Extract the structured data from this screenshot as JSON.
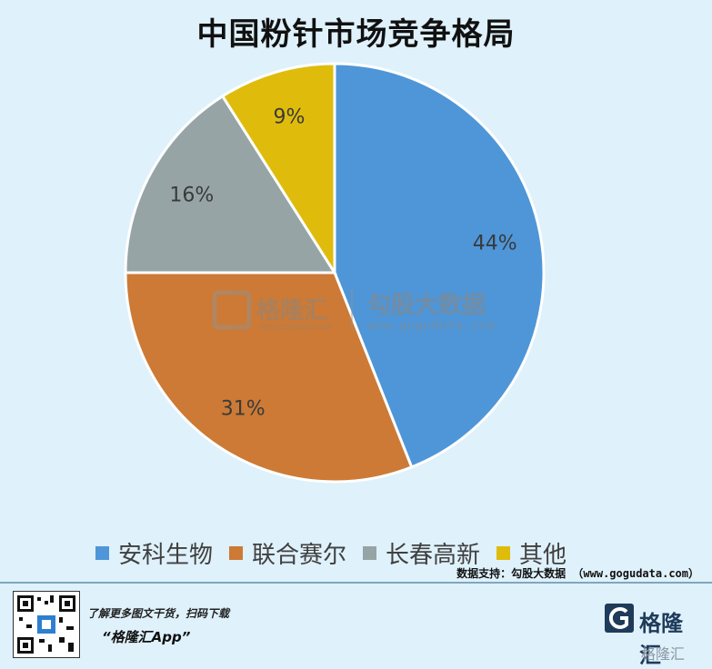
{
  "chart_data": {
    "type": "pie",
    "title": "中国粉针市场竞争格局",
    "slices": [
      {
        "label": "安科生物",
        "value": 44,
        "display": "44%",
        "color": "#4e96d8"
      },
      {
        "label": "联合赛尔",
        "value": 31,
        "display": "31%",
        "color": "#cc7a35"
      },
      {
        "label": "长春高新",
        "value": 16,
        "display": "16%",
        "color": "#96a4a6"
      },
      {
        "label": "其他",
        "value": 9,
        "display": "9%",
        "color": "#dfbc0c"
      }
    ],
    "legend_position": "bottom"
  },
  "watermark": {
    "brand": "格隆汇",
    "brand_url": "www.gelonghui.com",
    "partner": "勾股大数据",
    "partner_url": "www.gogudata.com"
  },
  "source_text": "数据支持：勾股大数据 （www.gogudata.com）",
  "footer": {
    "line1": "了解更多图文干货，扫码下载",
    "line2": "“格隆汇App”",
    "brand_name": "格隆汇",
    "brand_small": "格隆汇"
  }
}
